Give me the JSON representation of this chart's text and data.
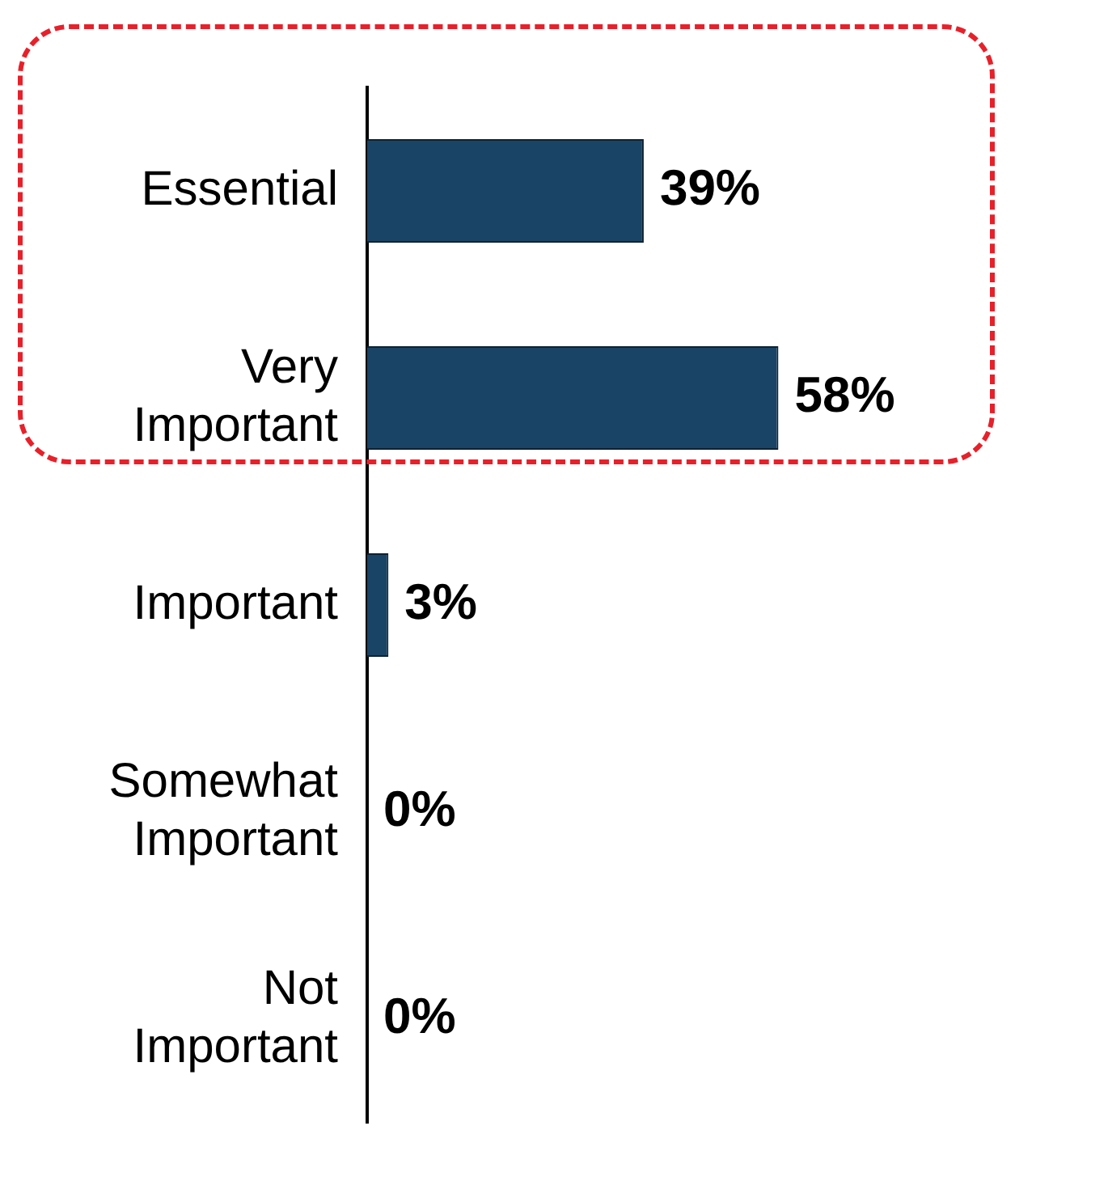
{
  "chart_data": {
    "type": "bar",
    "orientation": "horizontal",
    "categories": [
      "Essential",
      "Very Important",
      "Important",
      "Somewhat Important",
      "Not Important"
    ],
    "values": [
      39,
      58,
      3,
      0,
      0
    ],
    "color": "#1a4466",
    "data_labels": true,
    "value_labels": [
      "39%",
      "58%",
      "3%",
      "0%",
      "0%"
    ],
    "legend": false
  }
}
